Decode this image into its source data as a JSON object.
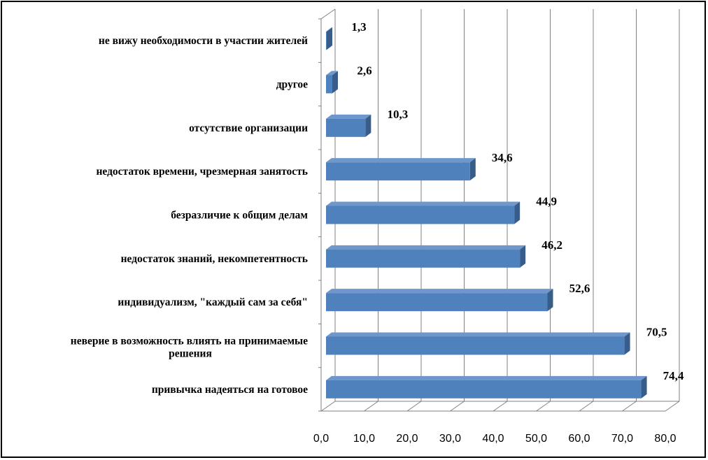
{
  "chart_data": {
    "type": "bar",
    "orientation": "horizontal",
    "three_d": true,
    "categories": [
      "не вижу необходимости в участии жителей",
      "другое",
      "отсутствие организации",
      "недостаток времени, чрезмерная занятость",
      "безразличие к общим делам",
      "недостаток знаний, некомпетентность",
      "индивидуализм, \"каждый сам за себя\"",
      "неверие в возможность влиять на принимаемые решения",
      "привычка надеяться на готовое"
    ],
    "category_lines": [
      [
        "не вижу необходимости в участии жителей"
      ],
      [
        "другое"
      ],
      [
        "отсутствие организации"
      ],
      [
        "недостаток времени, чрезмерная занятость"
      ],
      [
        "безразличие к общим делам"
      ],
      [
        "недостаток знаний, некомпетентность"
      ],
      [
        "индивидуализм, \"каждый сам за себя\""
      ],
      [
        "неверие в возможность влиять на принимаемые",
        "решения"
      ],
      [
        "привычка надеяться на готовое"
      ]
    ],
    "values": [
      1.3,
      2.6,
      10.3,
      34.6,
      44.9,
      46.2,
      52.6,
      70.5,
      74.4
    ],
    "value_labels": [
      "1,3",
      "2,6",
      "10,3",
      "34,6",
      "44,9",
      "46,2",
      "52,6",
      "70,5",
      "74,4"
    ],
    "x_ticks": [
      "0,0",
      "10,0",
      "20,0",
      "30,0",
      "40,0",
      "50,0",
      "60,0",
      "70,0",
      "80,0"
    ],
    "xlim": [
      0,
      80
    ],
    "title": "",
    "xlabel": "",
    "ylabel": "",
    "grid": true,
    "legend": "none",
    "colors": {
      "bar_front": "#4F81BD",
      "bar_top": "#6F97CB",
      "bar_side": "#385D8A",
      "gridline": "#808080",
      "frame": "#000000"
    }
  }
}
